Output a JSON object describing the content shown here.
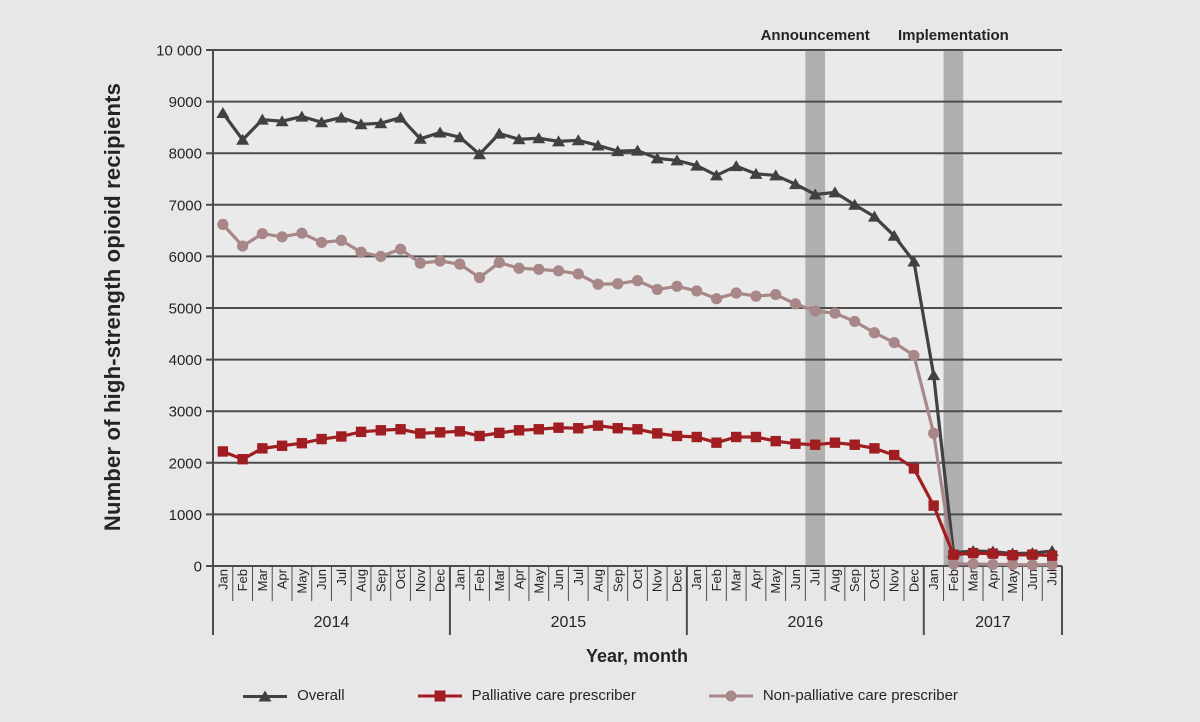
{
  "figure": {
    "y_axis": {
      "title": "Number of high-strength opioid recipients",
      "tick_labels": [
        "10 000",
        "9000",
        "8000",
        "7000",
        "6000",
        "5000",
        "4000",
        "3000",
        "2000",
        "1000",
        "0"
      ],
      "min": 0,
      "max": 10000
    },
    "x_axis": {
      "title": "Year, month",
      "years": [
        {
          "label": "2014",
          "months": 12
        },
        {
          "label": "2015",
          "months": 12
        },
        {
          "label": "2016",
          "months": 12
        },
        {
          "label": "2017",
          "months": 7
        }
      ]
    },
    "annotations": [
      {
        "label": "Announcement",
        "month_index": 30
      },
      {
        "label": "Implementation",
        "month_index": 37
      }
    ],
    "colors": {
      "page_bg": "#e8e7e7",
      "plot_bg": "#ebeaea",
      "grid": "#4d4d4d",
      "band": "#b1b0b0",
      "text": "#262324"
    }
  },
  "chart_data": {
    "type": "line",
    "title": "",
    "xlabel": "Year, month",
    "ylabel": "Number of high-strength opioid recipients",
    "ylim": [
      0,
      10000
    ],
    "grid": "horizontal",
    "legend_position": "bottom",
    "categories": [
      "Jan 2014",
      "Feb 2014",
      "Mar 2014",
      "Apr 2014",
      "May 2014",
      "Jun 2014",
      "Jul 2014",
      "Aug 2014",
      "Sep 2014",
      "Oct 2014",
      "Nov 2014",
      "Dec 2014",
      "Jan 2015",
      "Feb 2015",
      "Mar 2015",
      "Apr 2015",
      "May 2015",
      "Jun 2015",
      "Jul 2015",
      "Aug 2015",
      "Sep 2015",
      "Oct 2015",
      "Nov 2015",
      "Dec 2015",
      "Jan 2016",
      "Feb 2016",
      "Mar 2016",
      "Apr 2016",
      "May 2016",
      "Jun 2016",
      "Jul 2016",
      "Aug 2016",
      "Sep 2016",
      "Oct 2016",
      "Nov 2016",
      "Dec 2016",
      "Jan 2017",
      "Feb 2017",
      "Mar 2017",
      "Apr 2017",
      "May 2017",
      "Jun 2017",
      "Jul 2017"
    ],
    "month_labels": [
      "Jan",
      "Feb",
      "Mar",
      "Apr",
      "May",
      "Jun",
      "Jul",
      "Aug",
      "Sep",
      "Oct",
      "Nov",
      "Dec",
      "Jan",
      "Feb",
      "Mar",
      "Apr",
      "May",
      "Jun",
      "Jul",
      "Aug",
      "Sep",
      "Oct",
      "Nov",
      "Dec",
      "Jan",
      "Feb",
      "Mar",
      "Apr",
      "May",
      "Jun",
      "Jul",
      "Aug",
      "Sep",
      "Oct",
      "Nov",
      "Dec",
      "Jan",
      "Feb",
      "Mar",
      "Apr",
      "May",
      "Jun",
      "Jul"
    ],
    "series": [
      {
        "name": "Overall",
        "marker": "triangle",
        "color": "#414042",
        "values": [
          8780,
          8260,
          8650,
          8620,
          8710,
          8600,
          8690,
          8560,
          8580,
          8690,
          8280,
          8400,
          8310,
          7980,
          8380,
          8270,
          8290,
          8230,
          8250,
          8150,
          8040,
          8050,
          7900,
          7860,
          7760,
          7570,
          7750,
          7600,
          7570,
          7400,
          7200,
          7240,
          7000,
          6770,
          6400,
          5900,
          3700,
          260,
          290,
          280,
          240,
          250,
          290
        ]
      },
      {
        "name": "Palliative care prescriber",
        "marker": "square",
        "color": "#a01d21",
        "values": [
          2220,
          2070,
          2280,
          2330,
          2380,
          2460,
          2510,
          2600,
          2630,
          2650,
          2570,
          2590,
          2610,
          2520,
          2580,
          2630,
          2650,
          2680,
          2670,
          2720,
          2670,
          2650,
          2570,
          2520,
          2500,
          2390,
          2500,
          2500,
          2420,
          2370,
          2350,
          2390,
          2350,
          2280,
          2150,
          1890,
          1170,
          220,
          250,
          240,
          210,
          220,
          200
        ]
      },
      {
        "name": "Non-palliative care prescriber",
        "marker": "circle",
        "color": "#a88788",
        "values": [
          6620,
          6200,
          6440,
          6380,
          6450,
          6270,
          6310,
          6080,
          6000,
          6140,
          5870,
          5910,
          5850,
          5590,
          5880,
          5770,
          5750,
          5720,
          5660,
          5460,
          5470,
          5530,
          5360,
          5420,
          5330,
          5180,
          5290,
          5230,
          5260,
          5080,
          4940,
          4900,
          4740,
          4520,
          4330,
          4080,
          2570,
          40,
          40,
          30,
          30,
          20,
          30
        ]
      }
    ]
  },
  "legend": {
    "items": [
      {
        "label": "Overall"
      },
      {
        "label": "Palliative care prescriber"
      },
      {
        "label": "Non-palliative care prescriber"
      }
    ]
  }
}
